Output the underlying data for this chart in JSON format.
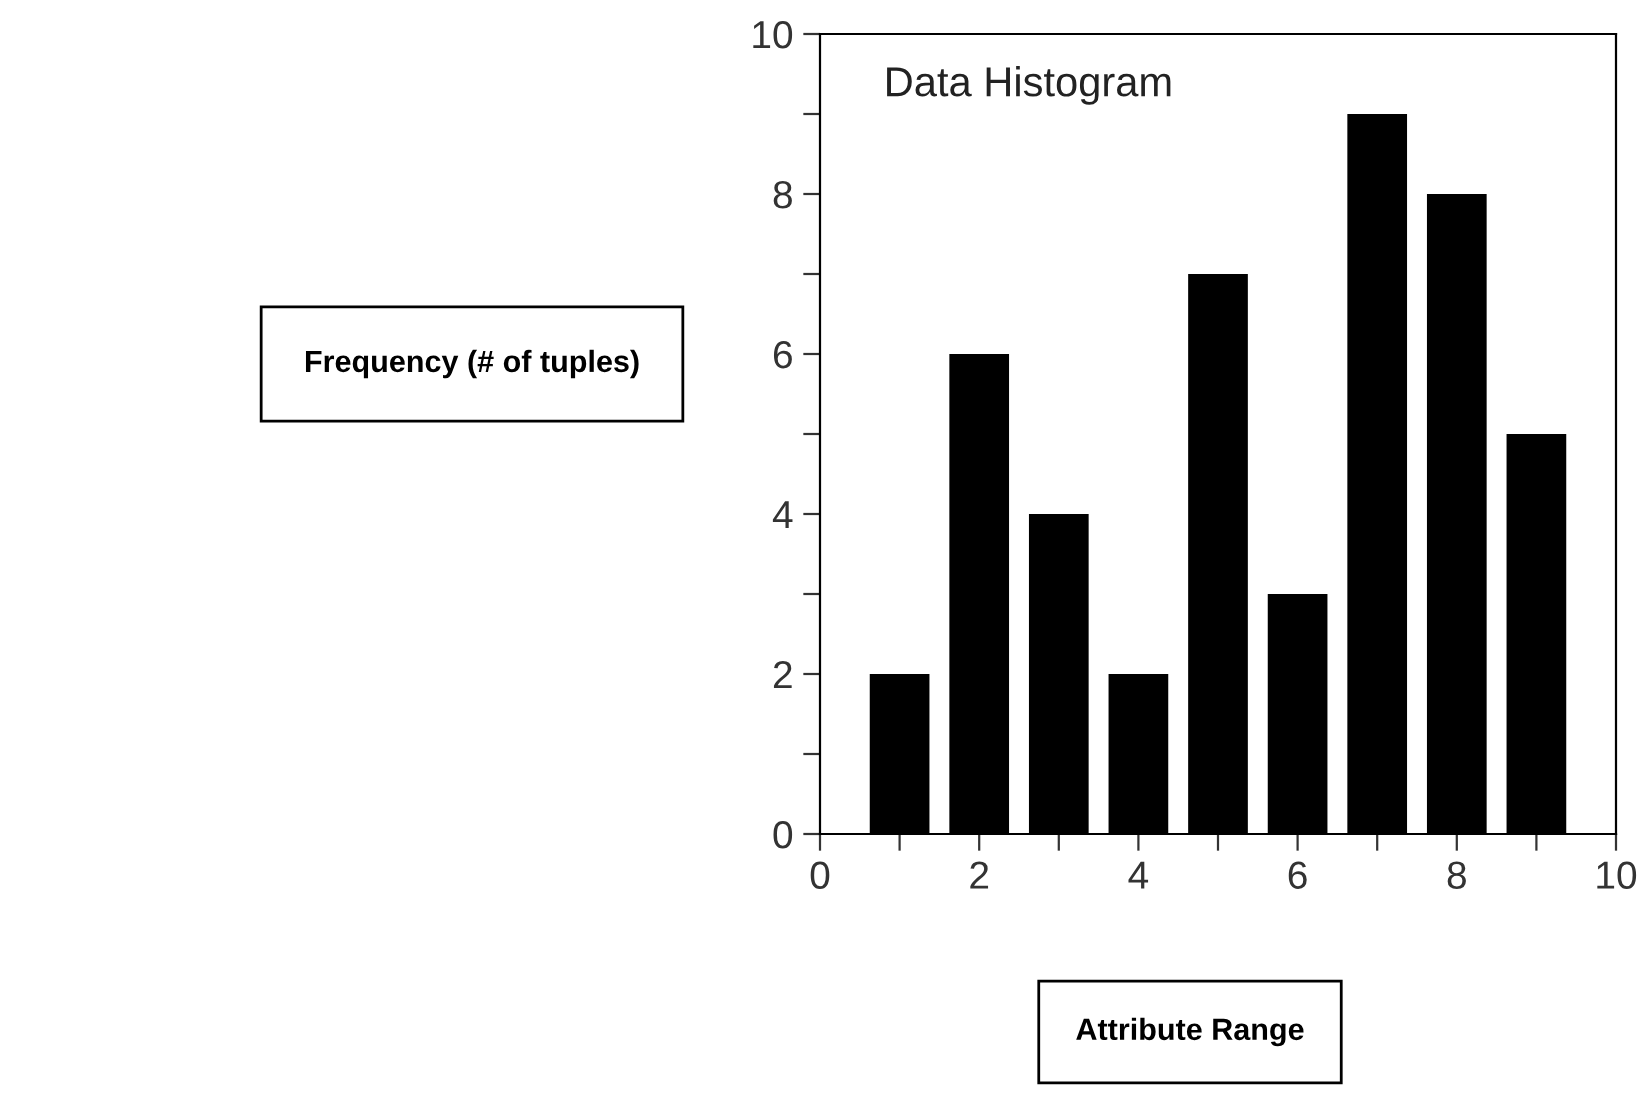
{
  "chart_data": {
    "type": "bar",
    "title": "Data Histogram",
    "xlabel": "Attribute Range",
    "ylabel": "Frequency (# of tuples)",
    "x": [
      1,
      2,
      3,
      4,
      5,
      6,
      7,
      8,
      9
    ],
    "values": [
      2,
      6,
      4,
      2,
      7,
      3,
      9,
      8,
      5
    ],
    "color": "#000000",
    "xlim": [
      0,
      10
    ],
    "ylim": [
      0,
      10
    ],
    "xticks": [
      0,
      {
        "value": 1,
        "label": null
      },
      2,
      {
        "value": 3,
        "label": null
      },
      4,
      {
        "value": 5,
        "label": null
      },
      6,
      {
        "value": 7,
        "label": null
      },
      8,
      {
        "value": 9,
        "label": null
      },
      10
    ],
    "yticks": [
      0,
      {
        "value": 1,
        "label": null
      },
      2,
      {
        "value": 3,
        "label": null
      },
      4,
      {
        "value": 5,
        "label": null
      },
      6,
      {
        "value": 7,
        "label": null
      },
      8,
      {
        "value": 9,
        "label": null
      },
      10
    ],
    "grid": false,
    "legend": false
  }
}
